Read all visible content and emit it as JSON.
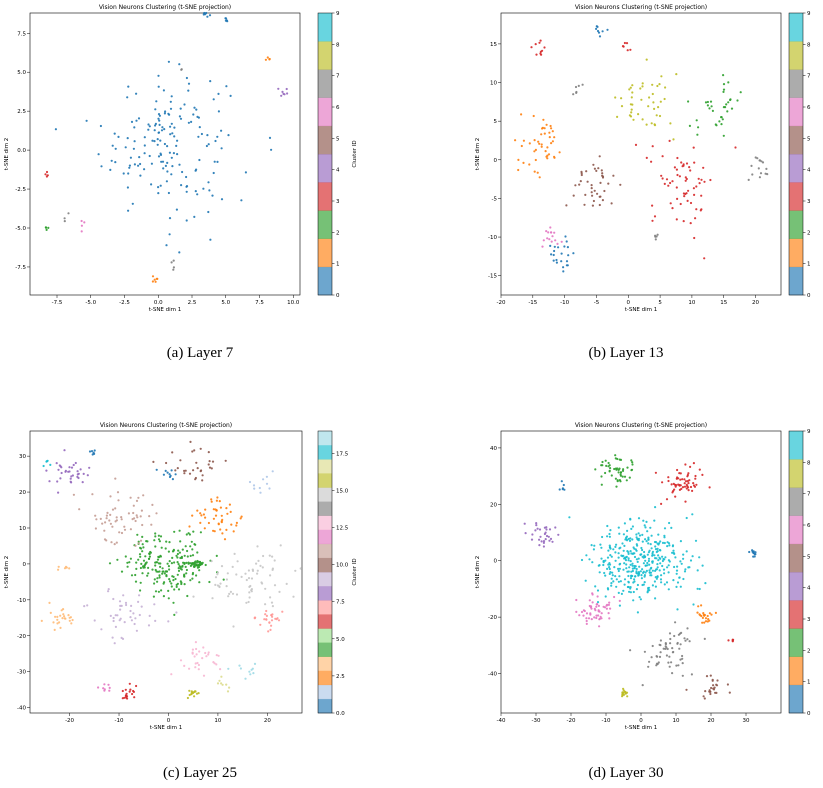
{
  "figure": {
    "captions": [
      "(a) Layer 7",
      "(b) Layer 13",
      "(c) Layer 25",
      "(d) Layer 30"
    ]
  },
  "palettes": {
    "tab10": [
      "#1f77b4",
      "#ff7f0e",
      "#2ca02c",
      "#d62728",
      "#9467bd",
      "#8c564b",
      "#e377c2",
      "#7f7f7f",
      "#bcbd22",
      "#17becf"
    ],
    "tab20": [
      "#1f77b4",
      "#aec7e8",
      "#ff7f0e",
      "#ffbb78",
      "#2ca02c",
      "#98df8a",
      "#d62728",
      "#ff9896",
      "#9467bd",
      "#c5b0d5",
      "#8c564b",
      "#c49c94",
      "#e377c2",
      "#f7b6d2",
      "#7f7f7f",
      "#c7c7c7",
      "#bcbd22",
      "#dbdb8d",
      "#17becf",
      "#9edae5"
    ]
  },
  "chart_data": [
    {
      "type": "scatter",
      "title": "Vision Neurons Clustering (t-SNE projection)",
      "xlabel": "t-SNE dim 1",
      "ylabel": "t-SNE dim 2",
      "xlim": [
        -9.5,
        10.5
      ],
      "ylim": [
        -9.3,
        8.8
      ],
      "xticks": [
        "-7.5",
        "-5.0",
        "-2.5",
        "0.0",
        "2.5",
        "5.0",
        "7.5",
        "10.0"
      ],
      "yticks": [
        "-7.5",
        "-5.0",
        "-2.5",
        "0.0",
        "2.5",
        "5.0",
        "7.5"
      ],
      "colorbar": {
        "label": "Cluster ID",
        "palette": "tab10",
        "range": [
          0,
          9
        ],
        "ticks": [
          "0",
          "1",
          "2",
          "3",
          "4",
          "5",
          "6",
          "7",
          "8",
          "9"
        ]
      },
      "clusters": [
        {
          "id": 0,
          "cx": 0.5,
          "cy": 0.5,
          "spread": 4.2,
          "n": 170
        },
        {
          "id": 0,
          "cx": 3.6,
          "cy": 8.7,
          "spread": 0.2,
          "n": 6
        },
        {
          "id": 0,
          "cx": 5.1,
          "cy": 8.5,
          "spread": 0.2,
          "n": 5
        },
        {
          "id": 0,
          "cx": 8.3,
          "cy": 0.4,
          "spread": 0.3,
          "n": 2
        },
        {
          "id": 1,
          "cx": 8.2,
          "cy": 5.8,
          "spread": 0.2,
          "n": 4
        },
        {
          "id": 1,
          "cx": -0.2,
          "cy": -8.4,
          "spread": 0.3,
          "n": 6
        },
        {
          "id": 2,
          "cx": -8.2,
          "cy": -5.0,
          "spread": 0.2,
          "n": 4
        },
        {
          "id": 3,
          "cx": -8.2,
          "cy": -1.6,
          "spread": 0.2,
          "n": 4
        },
        {
          "id": 4,
          "cx": 9.3,
          "cy": 3.6,
          "spread": 0.4,
          "n": 7
        },
        {
          "id": 6,
          "cx": -5.6,
          "cy": -4.9,
          "spread": 0.4,
          "n": 4
        },
        {
          "id": 7,
          "cx": -6.8,
          "cy": -4.3,
          "spread": 0.4,
          "n": 3
        },
        {
          "id": 7,
          "cx": 1.1,
          "cy": -7.3,
          "spread": 0.3,
          "n": 4
        },
        {
          "id": 7,
          "cx": 1.6,
          "cy": 5.0,
          "spread": 0.2,
          "n": 2
        }
      ]
    },
    {
      "type": "scatter",
      "title": "Vision Neurons Clustering (t-SNE projection)",
      "xlabel": "t-SNE dim 1",
      "ylabel": "t-SNE dim 2",
      "xlim": [
        -20,
        24
      ],
      "ylim": [
        -17.5,
        19
      ],
      "xticks": [
        "-20",
        "-15",
        "-10",
        "-5",
        "0",
        "5",
        "10",
        "15",
        "20"
      ],
      "yticks": [
        "-15",
        "-10",
        "-5",
        "0",
        "5",
        "10",
        "15"
      ],
      "colorbar": {
        "label": "Cluster ID",
        "palette": "tab10",
        "range": [
          0,
          9
        ],
        "ticks": [
          "0",
          "1",
          "2",
          "3",
          "4",
          "5",
          "6",
          "7",
          "8",
          "9"
        ]
      },
      "clusters": [
        {
          "id": 0,
          "cx": -10.5,
          "cy": -12.5,
          "spread": 2.0,
          "n": 22
        },
        {
          "id": 0,
          "cx": -4.5,
          "cy": 17.0,
          "spread": 1.2,
          "n": 8
        },
        {
          "id": 1,
          "cx": -13.5,
          "cy": 2.0,
          "spread": 3.2,
          "n": 45
        },
        {
          "id": 2,
          "cx": 14.0,
          "cy": 7.0,
          "spread": 3.5,
          "n": 35
        },
        {
          "id": 3,
          "cx": 8.5,
          "cy": -3.0,
          "spread": 5.0,
          "n": 65
        },
        {
          "id": 3,
          "cx": -13.5,
          "cy": 14.5,
          "spread": 1.0,
          "n": 10
        },
        {
          "id": 3,
          "cx": -0.5,
          "cy": 14.5,
          "spread": 0.7,
          "n": 6
        },
        {
          "id": 5,
          "cx": -6.0,
          "cy": -3.0,
          "spread": 3.5,
          "n": 40
        },
        {
          "id": 6,
          "cx": -12.5,
          "cy": -10.0,
          "spread": 2.0,
          "n": 15
        },
        {
          "id": 7,
          "cx": 20.0,
          "cy": -1.5,
          "spread": 1.6,
          "n": 15
        },
        {
          "id": 7,
          "cx": -8.0,
          "cy": 9.0,
          "spread": 0.8,
          "n": 6
        },
        {
          "id": 7,
          "cx": 4.5,
          "cy": -10.0,
          "spread": 0.6,
          "n": 5
        },
        {
          "id": 8,
          "cx": 2.5,
          "cy": 7.5,
          "spread": 4.2,
          "n": 45
        }
      ]
    },
    {
      "type": "scatter",
      "title": "Vision Neurons Clustering (t-SNE projection)",
      "xlabel": "t-SNE dim 1",
      "ylabel": "t-SNE dim 2",
      "xlim": [
        -28,
        27
      ],
      "ylim": [
        -41.5,
        37
      ],
      "xticks": [
        "-20",
        "-10",
        "0",
        "10",
        "20"
      ],
      "yticks": [
        "-40",
        "-30",
        "-20",
        "-10",
        "0",
        "10",
        "20",
        "30"
      ],
      "colorbar": {
        "label": "Cluster ID",
        "palette": "tab20",
        "range": [
          0,
          19
        ],
        "ticks": [
          "0.0",
          "2.5",
          "5.0",
          "7.5",
          "10.0",
          "12.5",
          "15.0",
          "17.5"
        ]
      },
      "clusters": [
        {
          "id": 4,
          "cx": 0.0,
          "cy": 0.0,
          "spread": 8.0,
          "n": 210
        },
        {
          "id": 4,
          "cx": 6.0,
          "cy": 0.0,
          "spread": 1.0,
          "n": 25
        },
        {
          "id": 8,
          "cx": -20.0,
          "cy": 25.0,
          "spread": 3.5,
          "n": 35
        },
        {
          "id": 0,
          "cx": 0.0,
          "cy": 25.0,
          "spread": 1.6,
          "n": 10
        },
        {
          "id": 0,
          "cx": -15.0,
          "cy": 31.0,
          "spread": 1.0,
          "n": 6
        },
        {
          "id": 18,
          "cx": -24.0,
          "cy": 28.0,
          "spread": 1.5,
          "n": 5
        },
        {
          "id": 2,
          "cx": 10.0,
          "cy": 13.0,
          "spread": 5.0,
          "n": 45
        },
        {
          "id": 3,
          "cx": -22.0,
          "cy": -15.0,
          "spread": 3.0,
          "n": 25
        },
        {
          "id": 3,
          "cx": -21.0,
          "cy": -1.0,
          "spread": 1.0,
          "n": 6
        },
        {
          "id": 6,
          "cx": -8.0,
          "cy": -36.0,
          "spread": 1.5,
          "n": 18
        },
        {
          "id": 7,
          "cx": 20.0,
          "cy": -15.0,
          "spread": 3.0,
          "n": 25
        },
        {
          "id": 9,
          "cx": -8.0,
          "cy": -14.0,
          "spread": 6.0,
          "n": 45
        },
        {
          "id": 10,
          "cx": 5.0,
          "cy": 28.0,
          "spread": 5.0,
          "n": 30
        },
        {
          "id": 11,
          "cx": -10.0,
          "cy": 12.0,
          "spread": 6.5,
          "n": 60
        },
        {
          "id": 12,
          "cx": -13.0,
          "cy": -34.0,
          "spread": 1.5,
          "n": 8
        },
        {
          "id": 13,
          "cx": 6.0,
          "cy": -26.0,
          "spread": 4.5,
          "n": 30
        },
        {
          "id": 15,
          "cx": 16.0,
          "cy": -5.0,
          "spread": 8.0,
          "n": 70
        },
        {
          "id": 16,
          "cx": 5.0,
          "cy": -36.0,
          "spread": 1.3,
          "n": 15
        },
        {
          "id": 17,
          "cx": 11.0,
          "cy": -33.0,
          "spread": 1.5,
          "n": 8
        },
        {
          "id": 19,
          "cx": 16.0,
          "cy": -30.0,
          "spread": 2.5,
          "n": 10
        },
        {
          "id": 1,
          "cx": 18.0,
          "cy": 22.0,
          "spread": 2.5,
          "n": 10
        }
      ]
    },
    {
      "type": "scatter",
      "title": "Vision Neurons Clustering (t-SNE projection)",
      "xlabel": "t-SNE dim 1",
      "ylabel": "t-SNE dim 2",
      "xlim": [
        -40,
        40
      ],
      "ylim": [
        -54,
        46
      ],
      "xticks": [
        "-40",
        "-30",
        "-20",
        "-10",
        "0",
        "10",
        "20",
        "30"
      ],
      "yticks": [
        "-40",
        "-20",
        "0",
        "20",
        "40"
      ],
      "colorbar": {
        "label": "Cluster ID",
        "palette": "tab10",
        "range": [
          0,
          9
        ],
        "ticks": [
          "0",
          "1",
          "2",
          "3",
          "4",
          "5",
          "6",
          "7",
          "8",
          "9"
        ]
      },
      "clusters": [
        {
          "id": 9,
          "cx": 0.0,
          "cy": 0.0,
          "spread": 13.0,
          "n": 380
        },
        {
          "id": 2,
          "cx": -8.0,
          "cy": 32.0,
          "spread": 5.0,
          "n": 50
        },
        {
          "id": 3,
          "cx": 12.0,
          "cy": 28.0,
          "spread": 6.0,
          "n": 60
        },
        {
          "id": 6,
          "cx": -13.0,
          "cy": -18.0,
          "spread": 5.0,
          "n": 55
        },
        {
          "id": 4,
          "cx": -28.0,
          "cy": 10.0,
          "spread": 4.0,
          "n": 30
        },
        {
          "id": 7,
          "cx": 8.0,
          "cy": -32.0,
          "spread": 7.0,
          "n": 60
        },
        {
          "id": 5,
          "cx": 20.0,
          "cy": -45.0,
          "spread": 4.0,
          "n": 25
        },
        {
          "id": 1,
          "cx": 18.0,
          "cy": -20.0,
          "spread": 3.0,
          "n": 22
        },
        {
          "id": 0,
          "cx": 32.0,
          "cy": 3.0,
          "spread": 1.5,
          "n": 12
        },
        {
          "id": 8,
          "cx": -5.0,
          "cy": -47.0,
          "spread": 1.0,
          "n": 18
        },
        {
          "id": 0,
          "cx": -22.0,
          "cy": 26.0,
          "spread": 2.0,
          "n": 6
        },
        {
          "id": 3,
          "cx": 26.0,
          "cy": -28.0,
          "spread": 1.0,
          "n": 5
        }
      ]
    }
  ]
}
